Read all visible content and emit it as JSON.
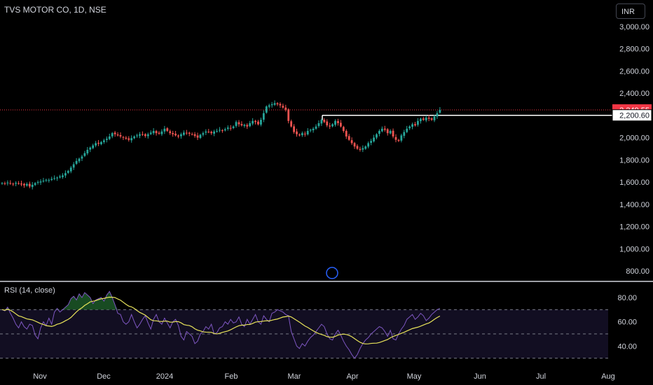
{
  "header": {
    "title": "TVS MOTOR CO, 1D, NSE",
    "currency": "INR"
  },
  "colors": {
    "up": "#26a69a",
    "down": "#ef5350",
    "rsi": "#7e57c2",
    "rsi_ma": "#e8e35a",
    "price_line": "#f23645"
  },
  "chart_data": [
    {
      "type": "candlestick",
      "title": "TVS MOTOR CO, 1D, NSE",
      "y_ticks": [
        "3,000.00",
        "2,800.00",
        "2,600.00",
        "2,400.00",
        "2,200.00",
        "2,000.00",
        "1,800.00",
        "1,600.00",
        "1,400.00",
        "1,200.00",
        "1,000.00",
        "800.00"
      ],
      "y_tick_values": [
        3000,
        2800,
        2600,
        2400,
        2200,
        2000,
        1800,
        1600,
        1400,
        1200,
        1000,
        800
      ],
      "ylim": [
        780,
        3060
      ],
      "x_ticks": [
        "Nov",
        "Dec",
        "2024",
        "Feb",
        "Mar",
        "Apr",
        "May",
        "Jun",
        "Jul",
        "Aug"
      ],
      "last_price": {
        "label": "2,249.55",
        "value": 2249.55
      },
      "level": {
        "label": "2,200.60",
        "value": 2200.6
      },
      "close": [
        1590,
        1588,
        1595,
        1585,
        1580,
        1592,
        1586,
        1578,
        1570,
        1582,
        1560,
        1575,
        1590,
        1600,
        1605,
        1612,
        1620,
        1618,
        1628,
        1635,
        1640,
        1650,
        1660,
        1680,
        1700,
        1730,
        1760,
        1790,
        1810,
        1830,
        1860,
        1890,
        1910,
        1930,
        1950,
        1945,
        1960,
        1975,
        1990,
        2010,
        2040,
        2030,
        2020,
        2010,
        2000,
        1990,
        1980,
        1995,
        2010,
        2020,
        2030,
        2025,
        2015,
        2030,
        2045,
        2060,
        2040,
        2035,
        2055,
        2080,
        2060,
        2040,
        2030,
        2020,
        2010,
        2030,
        2045,
        2040,
        2035,
        2030,
        2015,
        2000,
        2025,
        2040,
        2055,
        2050,
        2040,
        2055,
        2060,
        2070,
        2065,
        2075,
        2090,
        2085,
        2100,
        2140,
        2120,
        2110,
        2115,
        2100,
        2130,
        2150,
        2140,
        2120,
        2160,
        2220,
        2280,
        2290,
        2300,
        2310,
        2300,
        2290,
        2270,
        2250,
        2150,
        2100,
        2050,
        2030,
        2020,
        2040,
        2030,
        2060,
        2070,
        2080,
        2100,
        2130,
        2160,
        2140,
        2110,
        2100,
        2120,
        2150,
        2130,
        2100,
        2060,
        2010,
        1980,
        1950,
        1920,
        1900,
        1890,
        1905,
        1920,
        1950,
        1970,
        2000,
        2030,
        2060,
        2080,
        2070,
        2040,
        2060,
        2010,
        1980,
        1970,
        2020,
        2050,
        2080,
        2100,
        2120,
        2110,
        2150,
        2170,
        2160,
        2180,
        2170,
        2160,
        2190,
        2220,
        2249.55
      ],
      "rsi": {
        "label": "RSI (14, close)",
        "y_ticks": [
          "80.00",
          "60.00",
          "40.00"
        ],
        "y_tick_values": [
          80,
          60,
          40
        ],
        "ylim": [
          25,
          88
        ],
        "values": [
          70,
          69,
          72,
          67,
          63,
          58,
          55,
          60,
          56,
          54,
          58,
          57,
          49,
          46,
          55,
          60,
          57,
          63,
          58,
          68,
          71,
          68,
          70,
          72,
          74,
          79,
          81,
          78,
          83,
          80,
          84,
          82,
          80,
          75,
          78,
          79,
          80,
          77,
          82,
          85,
          80,
          74,
          67,
          66,
          60,
          58,
          60,
          66,
          60,
          55,
          58,
          62,
          65,
          59,
          54,
          62,
          66,
          60,
          58,
          63,
          59,
          55,
          60,
          62,
          57,
          48,
          45,
          52,
          50,
          48,
          42,
          44,
          50,
          52,
          56,
          54,
          58,
          50,
          51,
          55,
          56,
          60,
          58,
          62,
          59,
          60,
          64,
          58,
          56,
          62,
          58,
          62,
          66,
          60,
          58,
          65,
          62,
          60,
          67,
          68,
          70,
          69,
          68,
          66,
          65,
          52,
          46,
          40,
          38,
          42,
          40,
          44,
          47,
          49,
          52,
          55,
          58,
          56,
          50,
          46,
          45,
          50,
          53,
          49,
          44,
          40,
          37,
          33,
          30,
          33,
          38,
          42,
          45,
          47,
          50,
          52,
          54,
          56,
          55,
          52,
          48,
          53,
          46,
          45,
          50,
          54,
          57,
          62,
          64,
          66,
          62,
          64,
          67,
          65,
          61,
          63,
          66,
          68,
          70,
          71
        ]
      }
    }
  ]
}
